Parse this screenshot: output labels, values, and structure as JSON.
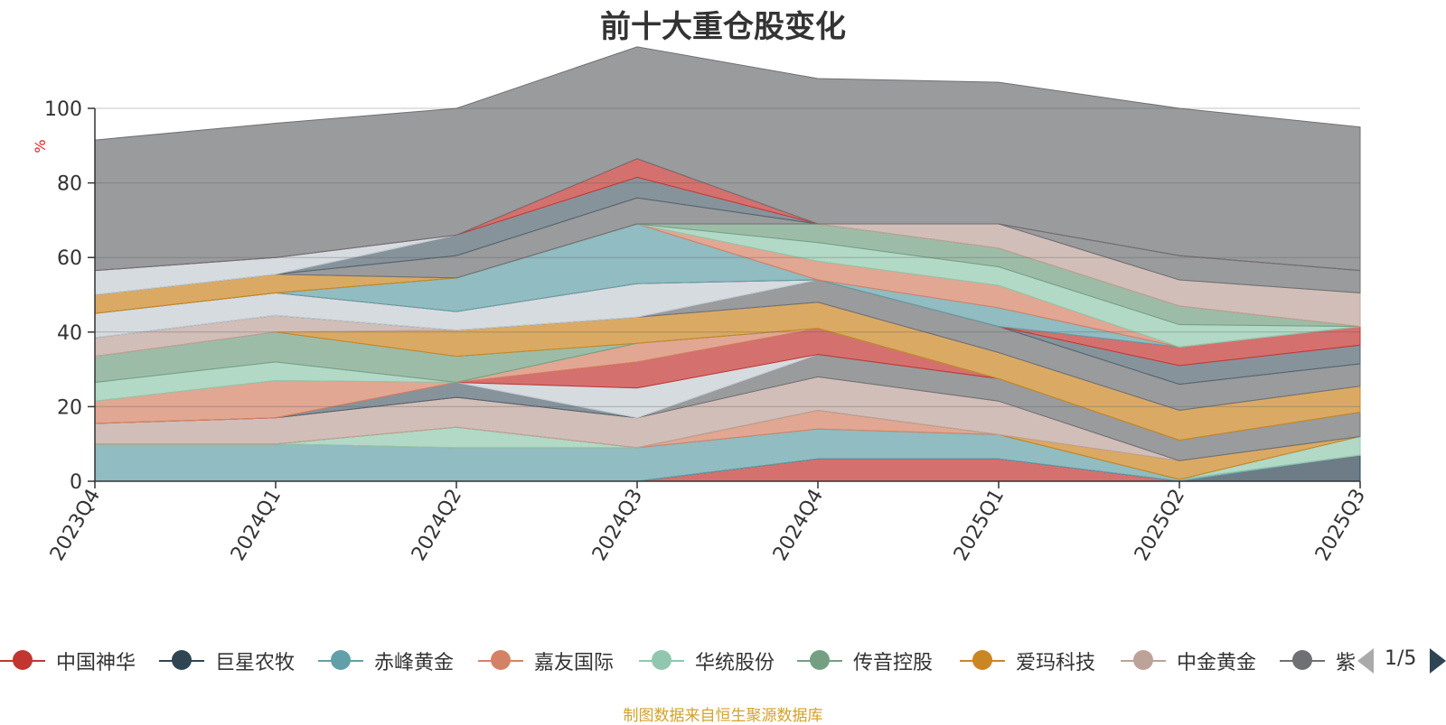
{
  "chart_data": {
    "type": "area",
    "title": "前十大重仓股变化",
    "ylabel": "%",
    "ylim": [
      0,
      100
    ],
    "yticks": [
      0,
      20,
      40,
      60,
      80,
      100
    ],
    "categories": [
      "2023Q4",
      "2024Q1",
      "2024Q2",
      "2024Q3",
      "2024Q4",
      "2025Q1",
      "2025Q2",
      "2025Q3"
    ],
    "grid": true,
    "legend_position": "bottom",
    "stacked_bands": [
      {
        "color": "#c23531",
        "values": [
          0,
          0,
          0,
          0,
          6,
          6,
          0,
          0
        ]
      },
      {
        "color": "#2f4554",
        "values": [
          0,
          0,
          0,
          0,
          0,
          0,
          0,
          7
        ]
      },
      {
        "color": "#61a0a8",
        "values": [
          10,
          10,
          9,
          9,
          8,
          6.5,
          0.5,
          0
        ]
      },
      {
        "color": "#d48265",
        "values": [
          0,
          0,
          0,
          0,
          5,
          0,
          0,
          0
        ]
      },
      {
        "color": "#91c7ae",
        "values": [
          0,
          0,
          5.5,
          0,
          0,
          0,
          0,
          5
        ]
      },
      {
        "color": "#749f83",
        "values": [
          0,
          0,
          0,
          0,
          0,
          0,
          0,
          0
        ]
      },
      {
        "color": "#ca8622",
        "values": [
          0,
          0,
          0,
          0,
          0,
          0,
          5,
          0
        ]
      },
      {
        "color": "#bda29a",
        "values": [
          5.5,
          7,
          8,
          8,
          9,
          9,
          0,
          0
        ]
      },
      {
        "color": "#6e7074",
        "values": [
          0,
          0,
          0,
          0,
          6,
          6,
          5.5,
          6.5
        ]
      },
      {
        "color": "#546570",
        "values": [
          0,
          0,
          4,
          0,
          0,
          0,
          0,
          0
        ]
      },
      {
        "color": "#c4ccd3",
        "values": [
          0,
          0,
          0,
          8,
          0,
          0,
          0,
          0
        ]
      },
      {
        "color": "#c23531",
        "values": [
          0,
          0,
          0,
          7,
          7,
          0,
          0,
          0
        ]
      },
      {
        "color": "#d48265",
        "values": [
          6,
          10,
          0,
          5,
          0,
          0,
          0,
          0
        ]
      },
      {
        "color": "#91c7ae",
        "values": [
          5,
          5,
          0,
          0,
          0,
          0,
          0,
          0
        ]
      },
      {
        "color": "#749f83",
        "values": [
          7,
          8,
          7,
          0,
          0,
          0,
          0,
          0
        ]
      },
      {
        "color": "#ca8622",
        "values": [
          0,
          0,
          7,
          7,
          7,
          7,
          8,
          7
        ]
      },
      {
        "color": "#bda29a",
        "values": [
          5,
          4.5,
          0,
          0,
          0,
          0,
          0,
          0
        ]
      },
      {
        "color": "#6e7074",
        "values": [
          0,
          0,
          0,
          0,
          6,
          7,
          7,
          6
        ]
      },
      {
        "color": "#546570",
        "values": [
          0,
          0,
          0,
          0,
          0,
          0,
          5,
          5
        ]
      },
      {
        "color": "#c4ccd3",
        "values": [
          6.5,
          6,
          5,
          9,
          0,
          0,
          0,
          0
        ]
      },
      {
        "color": "#c23531",
        "values": [
          0,
          0,
          0,
          0,
          0,
          0,
          5,
          5
        ]
      },
      {
        "color": "#61a0a8",
        "values": [
          0,
          0,
          9,
          16,
          0,
          5,
          0,
          0
        ]
      },
      {
        "color": "#d48265",
        "values": [
          0,
          0,
          0,
          0,
          5,
          6,
          0,
          0
        ]
      },
      {
        "color": "#91c7ae",
        "values": [
          0,
          0,
          0,
          0,
          5,
          5,
          6,
          0
        ]
      },
      {
        "color": "#749f83",
        "values": [
          0,
          0,
          0,
          0,
          5,
          5,
          5,
          0
        ]
      },
      {
        "color": "#ca8622",
        "values": [
          5,
          5,
          0,
          0,
          0,
          0,
          0,
          0
        ]
      },
      {
        "color": "#bda29a",
        "values": [
          0,
          0,
          0,
          0,
          0,
          6.5,
          7,
          9
        ]
      },
      {
        "color": "#6e7074",
        "values": [
          0,
          0,
          6,
          7,
          0,
          0,
          6.5,
          6
        ]
      },
      {
        "color": "#546570",
        "values": [
          0,
          0,
          5.5,
          5.5,
          0,
          0,
          0,
          0
        ]
      },
      {
        "color": "#c4ccd3",
        "values": [
          6.5,
          4.5,
          0,
          0,
          0,
          0,
          0,
          0
        ]
      },
      {
        "color": "#c23531",
        "values": [
          0,
          0,
          0,
          5,
          0,
          0,
          0,
          0
        ]
      },
      {
        "color": "#6e7074",
        "values": [
          35,
          36,
          34,
          30,
          39,
          38,
          39.5,
          38.5
        ]
      }
    ]
  },
  "legend": {
    "items": [
      {
        "label": "中国神华",
        "color": "#c23531"
      },
      {
        "label": "巨星农牧",
        "color": "#2f4554"
      },
      {
        "label": "赤峰黄金",
        "color": "#61a0a8"
      },
      {
        "label": "嘉友国际",
        "color": "#d48265"
      },
      {
        "label": "华统股份",
        "color": "#91c7ae"
      },
      {
        "label": "传音控股",
        "color": "#749f83"
      },
      {
        "label": "爱玛科技",
        "color": "#ca8622"
      },
      {
        "label": "中金黄金",
        "color": "#bda29a"
      },
      {
        "label": "紫金矿业",
        "color": "#6e7074"
      }
    ],
    "page_indicator": "1/5"
  },
  "source": "制图数据来自恒生聚源数据库"
}
